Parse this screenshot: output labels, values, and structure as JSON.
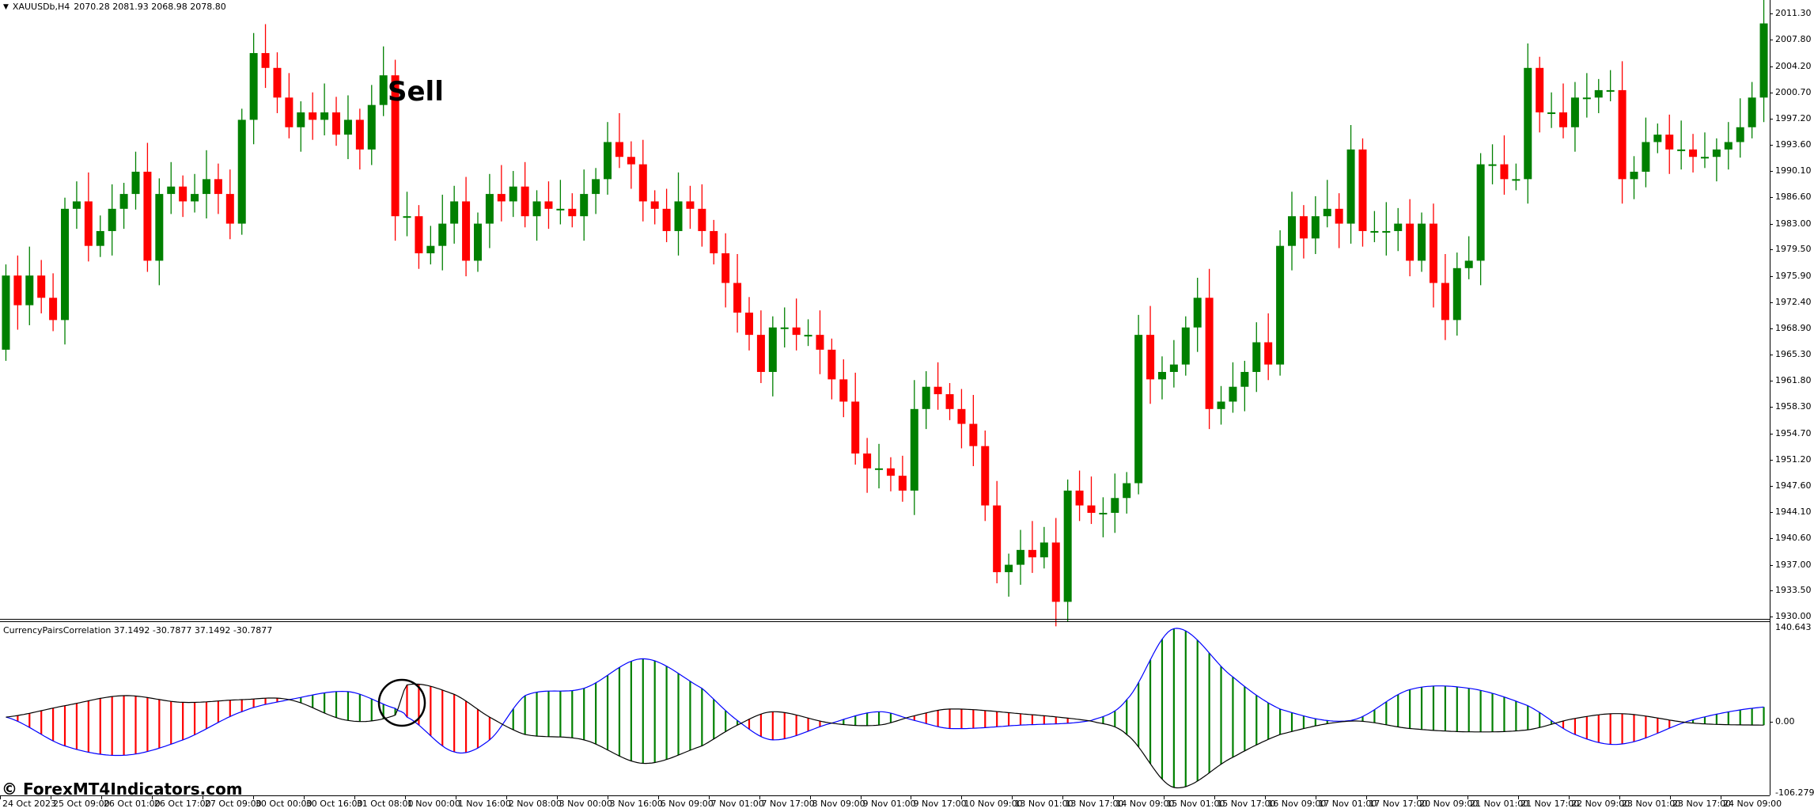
{
  "header": {
    "symbol": "XAUUSDb,H4",
    "ohlc": "2070.28 2081.93 2068.98 2078.80"
  },
  "annotation": {
    "sell_label": "Sell"
  },
  "watermark": "© ForexMT4Indicators.com",
  "indicator": {
    "label": "CurrencyPairsCorrelation 37.1492 -30.7877 37.1492 -30.7877",
    "axis_labels": [
      "140.643",
      "0.00",
      "-106.279"
    ]
  },
  "price_axis": [
    "2011.30",
    "2007.80",
    "2004.20",
    "2000.70",
    "1997.20",
    "1993.60",
    "1990.10",
    "1986.60",
    "1983.00",
    "1979.50",
    "1975.90",
    "1972.40",
    "1968.90",
    "1965.30",
    "1961.80",
    "1958.30",
    "1954.70",
    "1951.20",
    "1947.60",
    "1944.10",
    "1940.60",
    "1937.00",
    "1933.50",
    "1930.00"
  ],
  "time_axis": [
    "24 Oct 2023",
    "25 Oct 09:00",
    "26 Oct 01:00",
    "26 Oct 17:00",
    "27 Oct 09:00",
    "30 Oct 00:00",
    "30 Oct 16:00",
    "31 Oct 08:00",
    "1 Nov 00:00",
    "1 Nov 16:00",
    "2 Nov 08:00",
    "3 Nov 00:00",
    "3 Nov 16:00",
    "6 Nov 09:00",
    "7 Nov 01:00",
    "7 Nov 17:00",
    "8 Nov 09:00",
    "9 Nov 01:00",
    "9 Nov 17:00",
    "10 Nov 09:00",
    "13 Nov 01:00",
    "13 Nov 17:00",
    "14 Nov 09:00",
    "15 Nov 01:00",
    "15 Nov 17:00",
    "16 Nov 09:00",
    "17 Nov 01:00",
    "17 Nov 17:00",
    "20 Nov 09:00",
    "21 Nov 01:00",
    "21 Nov 17:00",
    "22 Nov 09:00",
    "23 Nov 01:00",
    "23 Nov 17:00",
    "24 Nov 09:00"
  ],
  "chart_data": [
    {
      "type": "candlestick",
      "colors": {
        "bull": "#008000",
        "bear": "#ff0000"
      },
      "ylim": [
        1930.0,
        2013.0
      ],
      "first_open": 1966,
      "close": [
        1976,
        1972,
        1976,
        1973,
        1970,
        1985,
        1986,
        1980,
        1982,
        1985,
        1987,
        1990,
        1978,
        1987,
        1988,
        1986,
        1987,
        1989,
        1987,
        1983,
        1997,
        2006,
        2004,
        2000,
        1996,
        1998,
        1997,
        1998,
        1995,
        1997,
        1993,
        1999,
        2003,
        1984,
        1984,
        1979,
        1980,
        1983,
        1986,
        1978,
        1983,
        1987,
        1986,
        1988,
        1984,
        1986,
        1985,
        1985,
        1984,
        1987,
        1989,
        1994,
        1992,
        1991,
        1986,
        1985,
        1982,
        1986,
        1985,
        1982,
        1979,
        1975,
        1971,
        1968,
        1963,
        1969,
        1969,
        1968,
        1968,
        1966,
        1962,
        1959,
        1952,
        1950,
        1950,
        1949,
        1947,
        1958,
        1961,
        1960,
        1958,
        1956,
        1953,
        1945,
        1936,
        1937,
        1939,
        1938,
        1940,
        1932,
        1947,
        1945,
        1944,
        1944,
        1946,
        1948,
        1968,
        1962,
        1963,
        1964,
        1969,
        1973,
        1958,
        1959,
        1961,
        1963,
        1967,
        1964,
        1980,
        1984,
        1981,
        1984,
        1985,
        1983,
        1993,
        1982,
        1982,
        1982,
        1983,
        1978,
        1983,
        1975,
        1970,
        1977,
        1978,
        1991,
        1991,
        1989,
        1989,
        2004,
        1998,
        1998,
        1996,
        2000,
        2000,
        2001,
        2001,
        1989,
        1990,
        1994,
        1995,
        1993,
        1993,
        1992,
        1992,
        1993,
        1994,
        1996,
        2000,
        2010
      ]
    },
    {
      "type": "line+histogram",
      "ylim": [
        -106.279,
        140.643
      ],
      "colors": {
        "line_a": "#0000ff",
        "line_b": "#000000",
        "hist_up": "#008000",
        "hist_down": "#ff0000"
      },
      "x_bar_index": [
        0,
        5,
        10,
        15,
        20,
        24,
        29,
        33,
        34,
        38,
        41,
        44,
        49,
        54,
        59,
        62,
        65,
        70,
        74,
        77,
        80,
        86,
        92,
        95,
        99,
        104,
        108,
        114,
        119,
        124,
        129,
        133,
        137,
        143,
        149
      ],
      "line_a": [
        7,
        -36,
        -50,
        -27,
        15,
        33,
        45,
        20,
        7,
        -45,
        -27,
        39,
        50,
        94,
        50,
        2,
        -27,
        -2,
        15,
        2,
        -10,
        -5,
        2,
        33,
        139,
        67,
        19,
        2,
        48,
        50,
        24,
        -19,
        -33,
        3,
        22
      ],
      "line_b": [
        7,
        24,
        39,
        29,
        33,
        33,
        2,
        10,
        55,
        41,
        7,
        -19,
        -27,
        -62,
        -36,
        -5,
        15,
        -2,
        -5,
        9,
        19,
        12,
        1,
        -19,
        -98,
        -53,
        -19,
        1,
        -10,
        -15,
        -12,
        5,
        12,
        -2,
        -5
      ]
    }
  ]
}
